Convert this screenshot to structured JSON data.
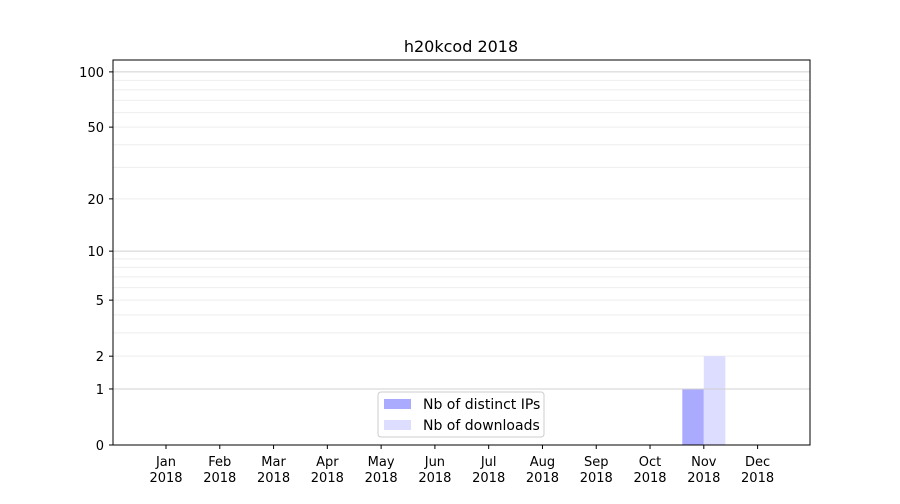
{
  "chart_data": {
    "type": "bar",
    "title": "h20kcod 2018",
    "xlabel": "",
    "ylabel": "",
    "y_scale": "log(1+y)",
    "ylim": [
      0,
      116
    ],
    "y_ticks": [
      0,
      1,
      2,
      5,
      10,
      20,
      50,
      100
    ],
    "grid": true,
    "legend_position": "lower-center",
    "categories": [
      [
        "Jan",
        "2018"
      ],
      [
        "Feb",
        "2018"
      ],
      [
        "Mar",
        "2018"
      ],
      [
        "Apr",
        "2018"
      ],
      [
        "May",
        "2018"
      ],
      [
        "Jun",
        "2018"
      ],
      [
        "Jul",
        "2018"
      ],
      [
        "Aug",
        "2018"
      ],
      [
        "Sep",
        "2018"
      ],
      [
        "Oct",
        "2018"
      ],
      [
        "Nov",
        "2018"
      ],
      [
        "Dec",
        "2018"
      ]
    ],
    "series": [
      {
        "name": "Nb of distinct IPs",
        "color": "#aaaaff",
        "values": [
          0,
          0,
          0,
          0,
          0,
          0,
          0,
          0,
          0,
          0,
          1,
          0
        ]
      },
      {
        "name": "Nb of downloads",
        "color": "#ddddff",
        "values": [
          0,
          0,
          0,
          0,
          0,
          0,
          0,
          0,
          0,
          0,
          2,
          0
        ]
      }
    ]
  }
}
